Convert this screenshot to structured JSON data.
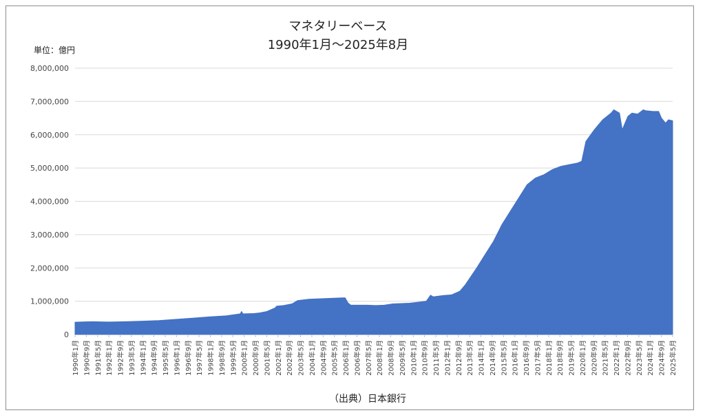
{
  "chart_data": {
    "type": "area",
    "title": "マネタリーベース",
    "subtitle": "1990年1月～2025年8月",
    "unit_label": "単位：億円",
    "source": "（出典）日本銀行",
    "color": "#4472C4",
    "grid": true,
    "ylim": [
      0,
      8000000
    ],
    "yticks": [
      0,
      1000000,
      2000000,
      3000000,
      4000000,
      5000000,
      6000000,
      7000000,
      8000000
    ],
    "ytick_labels": [
      "0",
      "1,000,000",
      "2,000,000",
      "3,000,000",
      "4,000,000",
      "5,000,000",
      "6,000,000",
      "7,000,000",
      "8,000,000"
    ],
    "x_start": "1990-01",
    "x_end": "2025-08",
    "xtick_labels": [
      "1990年1月",
      "1990年9月",
      "1991年5月",
      "1992年1月",
      "1992年9月",
      "1993年5月",
      "1994年1月",
      "1994年9月",
      "1995年5月",
      "1996年1月",
      "1996年9月",
      "1997年5月",
      "1998年1月",
      "1998年9月",
      "1999年5月",
      "2000年1月",
      "2000年9月",
      "2001年5月",
      "2002年1月",
      "2002年9月",
      "2003年5月",
      "2004年1月",
      "2004年9月",
      "2005年5月",
      "2006年1月",
      "2006年9月",
      "2007年5月",
      "2008年1月",
      "2008年9月",
      "2009年5月",
      "2010年1月",
      "2010年9月",
      "2011年5月",
      "2012年1月",
      "2012年9月",
      "2013年5月",
      "2014年1月",
      "2014年9月",
      "2015年5月",
      "2016年1月",
      "2016年9月",
      "2017年5月",
      "2018年1月",
      "2018年9月",
      "2019年5月",
      "2020年1月",
      "2020年9月",
      "2021年5月",
      "2022年1月",
      "2022年9月",
      "2023年5月",
      "2024年1月",
      "2024年9月",
      "2025年5月"
    ],
    "series": [
      {
        "values": [
          [
            "1990-01",
            370000
          ],
          [
            "1991-01",
            385000
          ],
          [
            "1992-01",
            375000
          ],
          [
            "1993-01",
            385000
          ],
          [
            "1994-01",
            400000
          ],
          [
            "1995-01",
            420000
          ],
          [
            "1996-01",
            455000
          ],
          [
            "1997-01",
            490000
          ],
          [
            "1998-01",
            530000
          ],
          [
            "1999-01",
            560000
          ],
          [
            "1999-11",
            620000
          ],
          [
            "1999-12",
            690000
          ],
          [
            "2000-01",
            620000
          ],
          [
            "2000-09",
            630000
          ],
          [
            "2001-01",
            650000
          ],
          [
            "2001-06",
            690000
          ],
          [
            "2001-12",
            800000
          ],
          [
            "2002-01",
            850000
          ],
          [
            "2002-06",
            870000
          ],
          [
            "2002-12",
            920000
          ],
          [
            "2003-04",
            1020000
          ],
          [
            "2003-12",
            1060000
          ],
          [
            "2004-06",
            1070000
          ],
          [
            "2004-12",
            1080000
          ],
          [
            "2005-06",
            1090000
          ],
          [
            "2005-12",
            1100000
          ],
          [
            "2006-02",
            1100000
          ],
          [
            "2006-04",
            950000
          ],
          [
            "2006-06",
            880000
          ],
          [
            "2006-12",
            880000
          ],
          [
            "2007-06",
            880000
          ],
          [
            "2007-12",
            870000
          ],
          [
            "2008-06",
            880000
          ],
          [
            "2008-12",
            920000
          ],
          [
            "2009-06",
            930000
          ],
          [
            "2009-12",
            940000
          ],
          [
            "2010-06",
            970000
          ],
          [
            "2010-12",
            1000000
          ],
          [
            "2011-03",
            1180000
          ],
          [
            "2011-05",
            1130000
          ],
          [
            "2011-12",
            1170000
          ],
          [
            "2012-06",
            1190000
          ],
          [
            "2012-12",
            1300000
          ],
          [
            "2013-04",
            1500000
          ],
          [
            "2013-12",
            2000000
          ],
          [
            "2014-06",
            2400000
          ],
          [
            "2014-12",
            2800000
          ],
          [
            "2015-06",
            3300000
          ],
          [
            "2015-12",
            3700000
          ],
          [
            "2016-06",
            4100000
          ],
          [
            "2016-12",
            4500000
          ],
          [
            "2017-06",
            4700000
          ],
          [
            "2017-12",
            4800000
          ],
          [
            "2018-06",
            4950000
          ],
          [
            "2018-12",
            5050000
          ],
          [
            "2019-06",
            5100000
          ],
          [
            "2019-12",
            5150000
          ],
          [
            "2020-03",
            5200000
          ],
          [
            "2020-06",
            5800000
          ],
          [
            "2020-12",
            6150000
          ],
          [
            "2021-06",
            6450000
          ],
          [
            "2021-12",
            6650000
          ],
          [
            "2022-02",
            6750000
          ],
          [
            "2022-06",
            6650000
          ],
          [
            "2022-08",
            6150000
          ],
          [
            "2022-12",
            6550000
          ],
          [
            "2023-03",
            6650000
          ],
          [
            "2023-07",
            6620000
          ],
          [
            "2023-11",
            6750000
          ],
          [
            "2024-01",
            6720000
          ],
          [
            "2024-06",
            6700000
          ],
          [
            "2024-10",
            6700000
          ],
          [
            "2024-12",
            6500000
          ],
          [
            "2025-03",
            6350000
          ],
          [
            "2025-05",
            6450000
          ],
          [
            "2025-08",
            6420000
          ]
        ]
      }
    ]
  }
}
